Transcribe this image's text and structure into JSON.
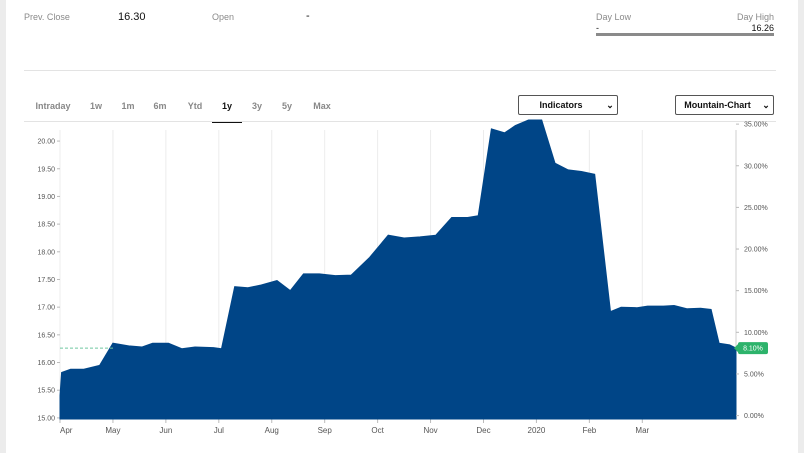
{
  "stats": {
    "prev_close_label": "Prev. Close",
    "prev_close_value": "16.30",
    "open_label": "Open",
    "open_value": "-",
    "day_low_label": "Day Low",
    "day_low_value": "-",
    "day_high_label": "Day High",
    "day_high_value": "16.26"
  },
  "tabs": [
    {
      "label": "Intraday",
      "active": false
    },
    {
      "label": "1w",
      "active": false
    },
    {
      "label": "1m",
      "active": false
    },
    {
      "label": "6m",
      "active": false
    },
    {
      "label": "Ytd",
      "active": false
    },
    {
      "label": "1y",
      "active": true
    },
    {
      "label": "3y",
      "active": false
    },
    {
      "label": "5y",
      "active": false
    },
    {
      "label": "Max",
      "active": false
    }
  ],
  "controls": {
    "indicators_label": "Indicators",
    "chart_type_label": "Mountain-Chart"
  },
  "chart_data": {
    "type": "area",
    "color": "#004587",
    "x_tick_labels": [
      "Apr",
      "May",
      "Jun",
      "Jul",
      "Aug",
      "Sep",
      "Oct",
      "Nov",
      "Dec",
      "2020",
      "Feb",
      "Mar"
    ],
    "y_left_ticks": [
      "15.00",
      "15.50",
      "16.00",
      "16.50",
      "17.00",
      "17.50",
      "18.00",
      "18.50",
      "19.00",
      "19.50",
      "20.00"
    ],
    "y_right_ticks": [
      "0.00%",
      "5.00%",
      "10.00%",
      "15.00%",
      "20.00%",
      "25.00%",
      "30.00%",
      "35.00%"
    ],
    "ylim": [
      14.98,
      20.2
    ],
    "reference_line_value": 16.26,
    "current_badge": "8.10%",
    "x_domain": [
      0,
      12.77
    ],
    "points": [
      [
        0.0,
        15.4
      ],
      [
        0.03,
        15.82
      ],
      [
        0.2,
        15.88
      ],
      [
        0.45,
        15.88
      ],
      [
        0.75,
        15.95
      ],
      [
        1.0,
        16.35
      ],
      [
        1.3,
        16.3
      ],
      [
        1.55,
        16.28
      ],
      [
        1.75,
        16.35
      ],
      [
        2.05,
        16.35
      ],
      [
        2.3,
        16.25
      ],
      [
        2.55,
        16.28
      ],
      [
        2.9,
        16.27
      ],
      [
        3.05,
        16.25
      ],
      [
        3.3,
        17.37
      ],
      [
        3.55,
        17.35
      ],
      [
        3.8,
        17.4
      ],
      [
        4.1,
        17.48
      ],
      [
        4.35,
        17.3
      ],
      [
        4.6,
        17.6
      ],
      [
        4.9,
        17.6
      ],
      [
        5.2,
        17.57
      ],
      [
        5.5,
        17.58
      ],
      [
        5.85,
        17.9
      ],
      [
        6.2,
        18.3
      ],
      [
        6.5,
        18.25
      ],
      [
        6.8,
        18.27
      ],
      [
        7.1,
        18.3
      ],
      [
        7.4,
        18.62
      ],
      [
        7.7,
        18.62
      ],
      [
        7.9,
        18.65
      ],
      [
        8.15,
        20.22
      ],
      [
        8.4,
        20.15
      ],
      [
        8.6,
        20.28
      ],
      [
        8.85,
        20.38
      ],
      [
        9.1,
        20.38
      ],
      [
        9.35,
        19.6
      ],
      [
        9.6,
        19.48
      ],
      [
        9.85,
        19.45
      ],
      [
        10.1,
        19.4
      ],
      [
        10.4,
        16.92
      ],
      [
        10.6,
        17.0
      ],
      [
        10.9,
        16.99
      ],
      [
        11.1,
        17.02
      ],
      [
        11.4,
        17.02
      ],
      [
        11.6,
        17.03
      ],
      [
        11.85,
        16.97
      ],
      [
        12.1,
        16.98
      ],
      [
        12.3,
        16.96
      ],
      [
        12.45,
        16.35
      ],
      [
        12.65,
        16.32
      ],
      [
        12.77,
        16.26
      ]
    ]
  }
}
